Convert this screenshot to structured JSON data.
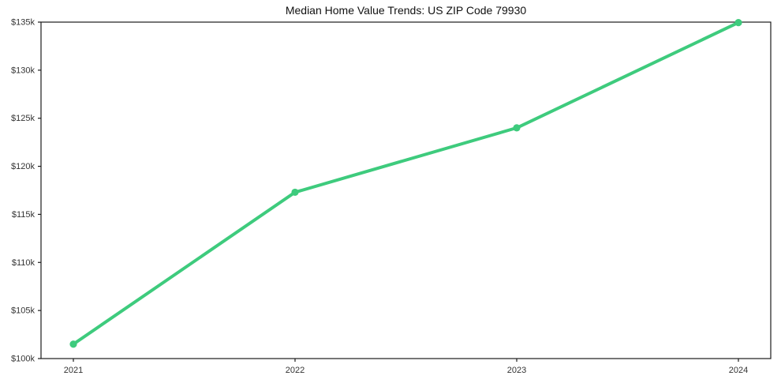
{
  "title": "Median Home Value Trends: US ZIP Code 79930",
  "colors": {
    "line": "#3ecb7d",
    "axis": "#1c1c1c",
    "tick_label": "#333333",
    "background": "#ffffff"
  },
  "chart_data": {
    "type": "line",
    "title": "Median Home Value Trends: US ZIP Code 79930",
    "categories": [
      "2021",
      "2022",
      "2023",
      "2024"
    ],
    "series": [
      {
        "name": "Median Home Value",
        "values": [
          101500,
          117300,
          124000,
          134950
        ]
      }
    ],
    "xlabel": "",
    "ylabel": "",
    "ylim": [
      100000,
      135000
    ],
    "yticks": {
      "values": [
        100000,
        105000,
        110000,
        115000,
        120000,
        125000,
        130000,
        135000
      ],
      "labels": [
        "$100k",
        "$105k",
        "$110k",
        "$115k",
        "$120k",
        "$125k",
        "$130k",
        "$135k"
      ]
    },
    "grid": false,
    "legend": "none",
    "marker": "circle",
    "line_color": "#3ecb7d",
    "frame": "box"
  }
}
